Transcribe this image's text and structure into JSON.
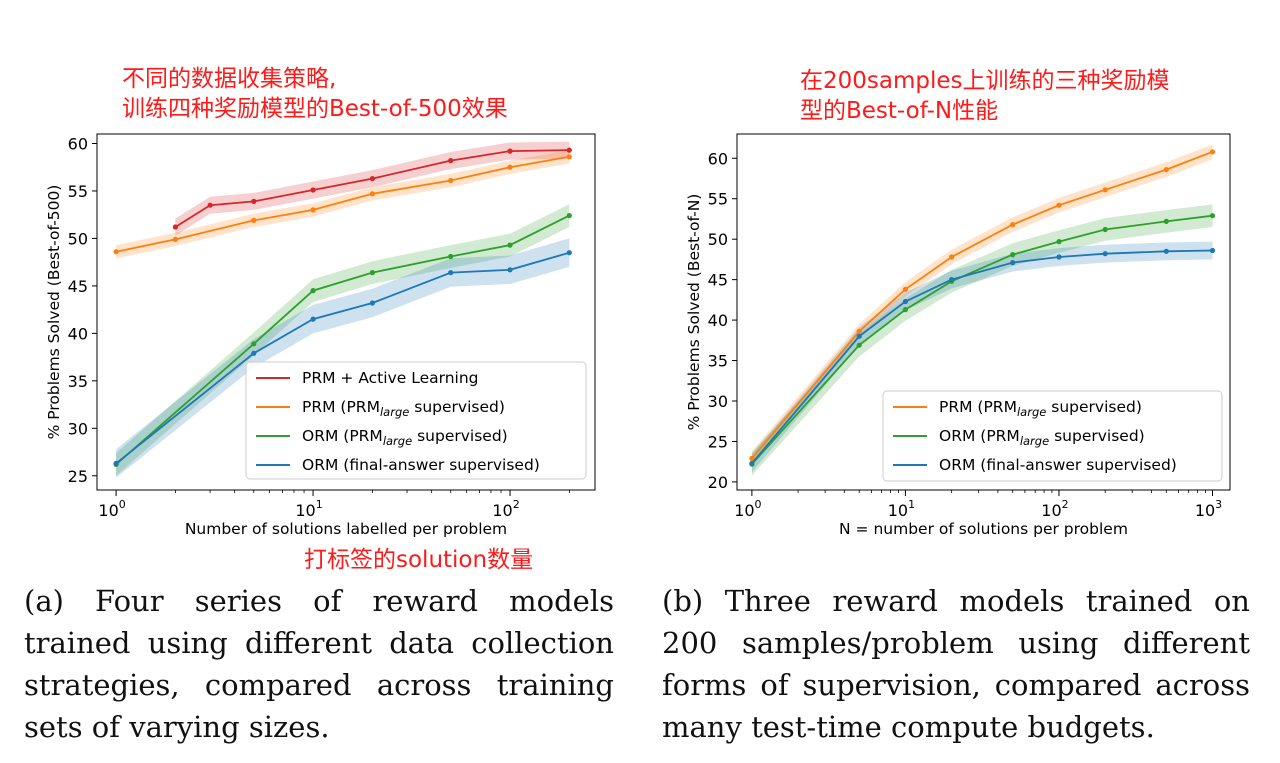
{
  "annotations": {
    "left_line1": "不同的数据收集策略,",
    "left_line2": "训练四种奖励模型的Best-of-500效果",
    "right_line1": "在200samples上训练的三种奖励模",
    "right_line2": "型的Best-of-N性能",
    "bottom": "打标签的solution数量"
  },
  "captions": {
    "a": [
      "(a)  Four  series  of  reward  models",
      "trained using different data collection",
      "strategies,  compared  across  training",
      "sets of varying sizes."
    ],
    "b": [
      "(b)  Three  reward  models  trained  on",
      "200  samples/problem  using  different",
      "forms of supervision, compared across",
      "many test-time compute budgets."
    ]
  },
  "chart_data": [
    {
      "type": "line",
      "xscale": "log",
      "xlabel": "Number of solutions labelled per problem",
      "ylabel": "% Problems Solved (Best-of-500)",
      "xlim": [
        0.8,
        270
      ],
      "ylim": [
        23.5,
        61
      ],
      "yticks": [
        25,
        30,
        35,
        40,
        45,
        50,
        55,
        60
      ],
      "xticks": [
        {
          "value": 1,
          "base": "10",
          "exp": "0"
        },
        {
          "value": 10,
          "base": "10",
          "exp": "1"
        },
        {
          "value": 100,
          "base": "10",
          "exp": "2"
        }
      ],
      "legend_position": "lower-right",
      "series": [
        {
          "name": "PRM + Active Learning",
          "color": "#d62728",
          "x": [
            2,
            3,
            5,
            10,
            20,
            50,
            100,
            200
          ],
          "y": [
            51.2,
            53.5,
            53.9,
            55.1,
            56.3,
            58.2,
            59.2,
            59.3
          ],
          "band": 0.9
        },
        {
          "name": "PRM (PRM_large supervised)",
          "name_parts": [
            "PRM (PRM",
            "large",
            " supervised)"
          ],
          "color": "#ff7f0e",
          "x": [
            1,
            2,
            5,
            10,
            20,
            50,
            100,
            200
          ],
          "y": [
            48.6,
            49.9,
            51.9,
            53.0,
            54.7,
            56.1,
            57.5,
            58.6
          ],
          "band": 0.7
        },
        {
          "name": "ORM (PRM_large supervised)",
          "name_parts": [
            "ORM (PRM",
            "large",
            " supervised)"
          ],
          "color": "#2ca02c",
          "x": [
            1,
            5,
            10,
            20,
            50,
            100,
            200
          ],
          "y": [
            26.2,
            38.9,
            44.5,
            46.4,
            48.1,
            49.3,
            52.4
          ],
          "band": 1.2
        },
        {
          "name": "ORM (final-answer supervised)",
          "color": "#1f77b4",
          "x": [
            1,
            5,
            10,
            20,
            50,
            100,
            200
          ],
          "y": [
            26.3,
            37.9,
            41.5,
            43.2,
            46.4,
            46.7,
            48.5
          ],
          "band": 1.5
        }
      ]
    },
    {
      "type": "line",
      "xscale": "log",
      "xlabel": "N = number of solutions per problem",
      "ylabel": "% Problems Solved (Best-of-N)",
      "xlim": [
        0.8,
        1300
      ],
      "ylim": [
        19,
        63
      ],
      "yticks": [
        20,
        25,
        30,
        35,
        40,
        45,
        50,
        55,
        60
      ],
      "xticks": [
        {
          "value": 1,
          "base": "10",
          "exp": "0"
        },
        {
          "value": 10,
          "base": "10",
          "exp": "1"
        },
        {
          "value": 100,
          "base": "10",
          "exp": "2"
        },
        {
          "value": 1000,
          "base": "10",
          "exp": "3"
        }
      ],
      "legend_position": "lower-right",
      "series": [
        {
          "name": "PRM (PRM_large supervised)",
          "name_parts": [
            "PRM (PRM",
            "large",
            " supervised)"
          ],
          "color": "#ff7f0e",
          "x": [
            1,
            5,
            10,
            20,
            50,
            100,
            200,
            500,
            1000
          ],
          "y": [
            22.9,
            38.6,
            43.8,
            47.8,
            51.8,
            54.2,
            56.1,
            58.6,
            60.8
          ],
          "band": 0.9
        },
        {
          "name": "ORM (PRM_large supervised)",
          "name_parts": [
            "ORM (PRM",
            "large",
            " supervised)"
          ],
          "color": "#2ca02c",
          "x": [
            1,
            5,
            10,
            20,
            50,
            100,
            200,
            500,
            1000
          ],
          "y": [
            22.2,
            36.9,
            41.3,
            44.8,
            48.1,
            49.7,
            51.2,
            52.2,
            52.9
          ],
          "band": 1.4
        },
        {
          "name": "ORM (final-answer supervised)",
          "color": "#1f77b4",
          "x": [
            1,
            5,
            10,
            20,
            50,
            100,
            200,
            500,
            1000
          ],
          "y": [
            22.3,
            38.0,
            42.3,
            45.0,
            47.1,
            47.8,
            48.2,
            48.5,
            48.6
          ],
          "band": 1.1
        }
      ]
    }
  ]
}
